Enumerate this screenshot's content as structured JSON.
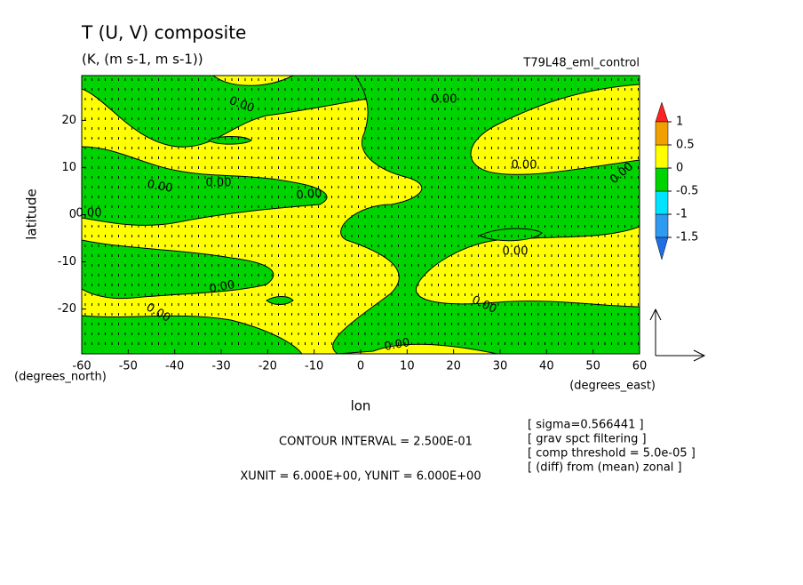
{
  "chart_data": {
    "type": "contour",
    "title": "T (U, V) composite",
    "subtitle": "(K, (m s-1, m s-1))",
    "run_label": "T79L48_eml_control",
    "x_label": "lon",
    "y_label": "latitude",
    "x_units": "(degrees_east)",
    "y_units": "(degrees_north)",
    "xlim": [
      -60,
      60
    ],
    "ylim": [
      -29.5,
      29.5
    ],
    "xticks": [
      -60,
      -50,
      -40,
      -30,
      -20,
      -10,
      0,
      10,
      20,
      30,
      40,
      50,
      60
    ],
    "yticks": [
      -20,
      -10,
      0,
      10,
      20
    ],
    "contour_labels": [
      "0.00",
      "0.00",
      "0.00",
      "0.00",
      "0.00",
      "0.00",
      "0.00",
      "0.00",
      "0.00",
      "0.00",
      "0.00",
      "0.00",
      "0.00"
    ],
    "colorbar": {
      "levels": [
        -1.5,
        -1,
        -0.5,
        0,
        0.5,
        1
      ],
      "colors": [
        "#1e6fe6",
        "#2f9bf0",
        "#00e3ff",
        "#00d400",
        "#ffff00",
        "#f0a000",
        "#ff2222"
      ]
    },
    "footer": [
      "CONTOUR INTERVAL = 2.500E-01",
      "XUNIT = 6.000E+00, YUNIT = 6.000E+00"
    ],
    "notes": [
      "[ sigma=0.566441 ]",
      "[ grav spct filtering ]",
      "[ comp threshold = 5.0e-05 ]",
      "[ (diff) from (mean) zonal ]"
    ]
  }
}
